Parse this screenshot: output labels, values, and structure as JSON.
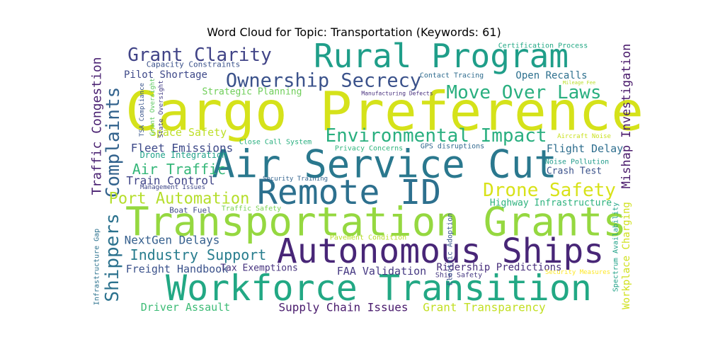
{
  "chart_data": {
    "type": "wordcloud",
    "title": "Word Cloud for Topic: Transportation (Keywords: 61)",
    "keyword_count": 61,
    "background": "#ffffff",
    "colormap": "viridis",
    "words": [
      {
        "text": "Cargo Preference",
        "weight": 1.0,
        "color": "#d5e21a"
      },
      {
        "text": "Air Service Cut",
        "weight": 0.84,
        "color": "#2a788e"
      },
      {
        "text": "Transportation Grants",
        "weight": 0.78,
        "color": "#95d840"
      },
      {
        "text": "Rural Program",
        "weight": 0.72,
        "color": "#1f9e89"
      },
      {
        "text": "Workforce Transition",
        "weight": 0.74,
        "color": "#22a884"
      },
      {
        "text": "Autonomous Ships",
        "weight": 0.7,
        "color": "#482677"
      },
      {
        "text": "Remote ID",
        "weight": 0.7,
        "color": "#2d708e"
      },
      {
        "text": "Ownership Secrecy",
        "weight": 0.44,
        "color": "#3b528b"
      },
      {
        "text": "Move Over Laws",
        "weight": 0.42,
        "color": "#29af7f"
      },
      {
        "text": "Environmental Impact",
        "weight": 0.42,
        "color": "#29af7f"
      },
      {
        "text": "Complaints",
        "weight": 0.44,
        "color": "#33638d"
      },
      {
        "text": "Shippers",
        "weight": 0.44,
        "color": "#2c728e"
      },
      {
        "text": "Drone Safety",
        "weight": 0.42,
        "color": "#d8e219"
      },
      {
        "text": "Grant Clarity",
        "weight": 0.4,
        "color": "#414487"
      },
      {
        "text": "Port Automation",
        "weight": 0.36,
        "color": "#b5de2b"
      },
      {
        "text": "Air Traffic",
        "weight": 0.32,
        "color": "#35b779"
      },
      {
        "text": "Industry Support",
        "weight": 0.32,
        "color": "#287d8e"
      },
      {
        "text": "Traffic Congestion",
        "weight": 0.3,
        "color": "#481f70"
      },
      {
        "text": "Mishap Investigation",
        "weight": 0.29,
        "color": "#48186a"
      },
      {
        "text": "Fleet Emissions",
        "weight": 0.26,
        "color": "#3e4a89"
      },
      {
        "text": "Train Control",
        "weight": 0.26,
        "color": "#404588"
      },
      {
        "text": "NextGen Delays",
        "weight": 0.26,
        "color": "#355f8d"
      },
      {
        "text": "Supply Chain Issues",
        "weight": 0.27,
        "color": "#481a6c"
      },
      {
        "text": "Grant Transparency",
        "weight": 0.27,
        "color": "#c2df23"
      },
      {
        "text": "Driver Assault",
        "weight": 0.26,
        "color": "#3cbb75"
      },
      {
        "text": "Freight Handbook",
        "weight": 0.25,
        "color": "#3b528b"
      },
      {
        "text": "Space Safety",
        "weight": 0.25,
        "color": "#bddf26"
      },
      {
        "text": "Flight Delay",
        "weight": 0.25,
        "color": "#2e6e8e"
      },
      {
        "text": "FAA Validation",
        "weight": 0.25,
        "color": "#453882"
      },
      {
        "text": "Ridership Predictions",
        "weight": 0.24,
        "color": "#472d7b"
      },
      {
        "text": "Workplace Charging",
        "weight": 0.24,
        "color": "#d0e11c"
      },
      {
        "text": "Highway Infrastructure",
        "weight": 0.23,
        "color": "#2db27d"
      },
      {
        "text": "Pilot Shortage",
        "weight": 0.22,
        "color": "#3e4989"
      },
      {
        "text": "Strategic Planning",
        "weight": 0.22,
        "color": "#6ece58"
      },
      {
        "text": "Open Recalls",
        "weight": 0.22,
        "color": "#2d708e"
      },
      {
        "text": "Crash Test",
        "weight": 0.21,
        "color": "#3b528b"
      },
      {
        "text": "Tax Exemptions",
        "weight": 0.21,
        "color": "#46327e"
      },
      {
        "text": "Drone Integration",
        "weight": 0.2,
        "color": "#1fa188"
      },
      {
        "text": "Boat Fuel",
        "weight": 0.18,
        "color": "#3e4989"
      },
      {
        "text": "Infrastructure Gap",
        "weight": 0.16,
        "color": "#2c728e"
      },
      {
        "text": "Spectrum Availability",
        "weight": 0.16,
        "color": "#1fa187"
      },
      {
        "text": "Capacity Constraints",
        "weight": 0.17,
        "color": "#3b528b"
      },
      {
        "text": "Certification Process",
        "weight": 0.16,
        "color": "#22a884"
      },
      {
        "text": "Ship Safety",
        "weight": 0.16,
        "color": "#453781"
      },
      {
        "text": "Noise Pollution",
        "weight": 0.16,
        "color": "#1f9a8a"
      },
      {
        "text": "Close Call System",
        "weight": 0.15,
        "color": "#29af7f"
      },
      {
        "text": "Electric Adoption",
        "weight": 0.15,
        "color": "#39568c"
      },
      {
        "text": "Pavement Condition",
        "weight": 0.15,
        "color": "#b8de29"
      },
      {
        "text": "Privacy Concerns",
        "weight": 0.15,
        "color": "#2fb47c"
      },
      {
        "text": "GPS disruptions",
        "weight": 0.15,
        "color": "#31688e"
      },
      {
        "text": "Contact Tracing",
        "weight": 0.15,
        "color": "#2f6c8e"
      },
      {
        "text": "Traffic Safety",
        "weight": 0.14,
        "color": "#7ad151"
      },
      {
        "text": "Security Training",
        "weight": 0.13,
        "color": "#33638d"
      },
      {
        "text": "Management Issues",
        "weight": 0.13,
        "color": "#3f4788"
      },
      {
        "text": "TSA Compliance",
        "weight": 0.13,
        "color": "#39558c"
      },
      {
        "text": "Grant Oversight",
        "weight": 0.12,
        "color": "#5ec962"
      },
      {
        "text": "State Oversight",
        "weight": 0.12,
        "color": "#433e85"
      },
      {
        "text": "Aircraft Noise",
        "weight": 0.13,
        "color": "#cae11f"
      },
      {
        "text": "Security Measures",
        "weight": 0.13,
        "color": "#fde725"
      },
      {
        "text": "Manufacturing Defects",
        "weight": 0.11,
        "color": "#472f7d"
      },
      {
        "text": "Mileage Fee",
        "weight": 0.1,
        "color": "#bade28"
      }
    ]
  }
}
